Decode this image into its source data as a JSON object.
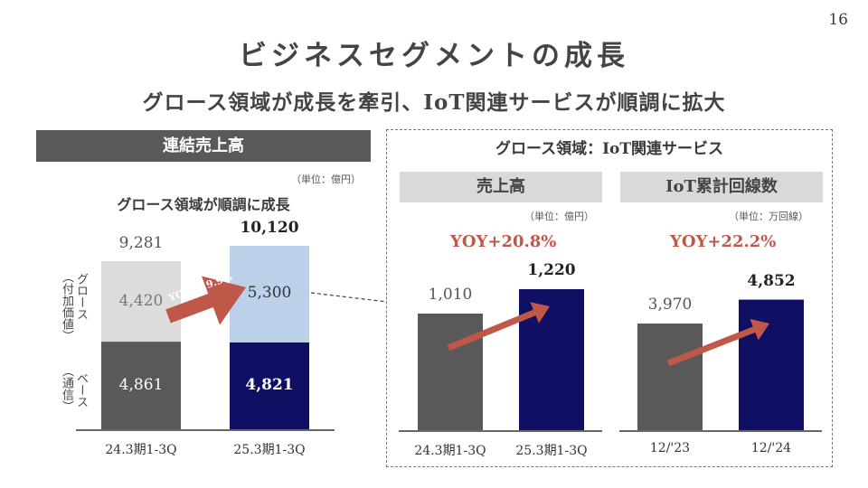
{
  "page_number": "16",
  "title": "ビジネスセグメントの成長",
  "subtitle": "グロース領域が成長を牽引、IoT関連サービスが順調に拡大",
  "left": {
    "header": "連結売上高",
    "unit": "（単位：億円）",
    "chart_title": "グロース領域が順調に成長",
    "growth_label": "グロース",
    "growth_sub": "（付加価値）",
    "base_label": "ベース",
    "base_sub": "（通信）",
    "arrow_label": "YOY＋19.9%"
  },
  "right": {
    "header": "グロース領域：IoT関連サービス",
    "sales": {
      "header": "売上高",
      "unit": "（単位：億円）",
      "yoy": "YOY+20.8%"
    },
    "iot": {
      "header": "IoT累計回線数",
      "unit": "（単位：万回線）",
      "yoy": "YOY+22.2%"
    }
  },
  "colors": {
    "prev": "#595959",
    "curr": "#0f0f63",
    "growth_prev": "#dcdcdc",
    "growth_curr": "#bcd0ea",
    "arrow": "#c0584a"
  },
  "chart_data": [
    {
      "type": "bar",
      "stacked": true,
      "categories": [
        "24.3期1-3Q",
        "25.3期1-3Q"
      ],
      "series": [
        {
          "name": "ベース（通信）",
          "values": [
            4861,
            4821
          ]
        },
        {
          "name": "グロース（付加価値）",
          "values": [
            4420,
            5300
          ]
        }
      ],
      "totals": [
        9281,
        10120
      ],
      "value_labels": {
        "base": [
          "4,861",
          "4,821"
        ],
        "growth": [
          "4,420",
          "5,300"
        ],
        "totals": [
          "9,281",
          "10,120"
        ]
      }
    },
    {
      "type": "bar",
      "categories": [
        "24.3期1-3Q",
        "25.3期1-3Q"
      ],
      "values": [
        1010,
        1220
      ],
      "labels": [
        "1,010",
        "1,220"
      ]
    },
    {
      "type": "bar",
      "categories": [
        "12/'23",
        "12/'24"
      ],
      "values": [
        3970,
        4852
      ],
      "labels": [
        "3,970",
        "4,852"
      ]
    }
  ]
}
